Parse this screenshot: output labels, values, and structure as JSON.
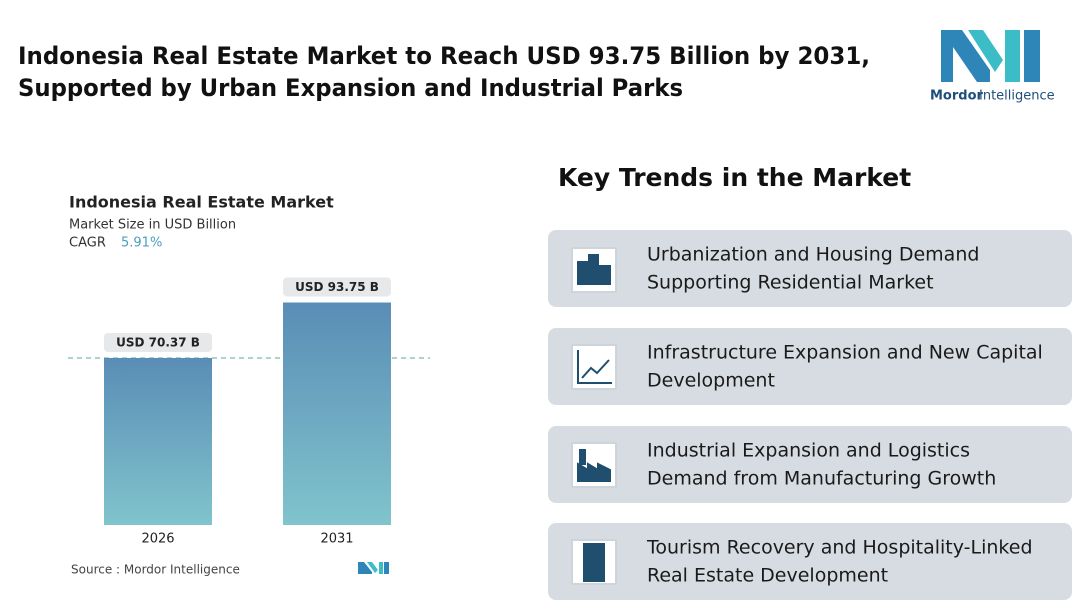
{
  "header": {
    "title_lines": [
      "Indonesia Real Estate Market to Reach USD 93.75 Billion by 2031,",
      "Supported by Urban Expansion and Industrial Parks"
    ],
    "brand_first": "Mordor",
    "brand_second": "Intelligence"
  },
  "chart_data": {
    "type": "bar",
    "title": "Indonesia Real Estate Market",
    "subtitle": "Market Size in USD Billion",
    "cagr_label": "CAGR",
    "cagr_value": "5.91%",
    "categories": [
      "2026",
      "2031"
    ],
    "values": [
      70.37,
      93.75
    ],
    "value_labels": [
      "USD 70.37 B",
      "USD 93.75 B"
    ],
    "source": "Source :  Mordor Intelligence"
  },
  "trends": {
    "title": "Key Trends in the Market",
    "items": [
      {
        "lines": [
          "Urbanization and Housing Demand",
          "Supporting Residential Market"
        ]
      },
      {
        "lines": [
          "Infrastructure Expansion and New Capital",
          "Development"
        ]
      },
      {
        "lines": [
          "Industrial Expansion and Logistics",
          "Demand from Manufacturing Growth"
        ]
      },
      {
        "lines": [
          "Tourism Recovery and Hospitality-Linked",
          "Real Estate Development"
        ]
      }
    ]
  }
}
